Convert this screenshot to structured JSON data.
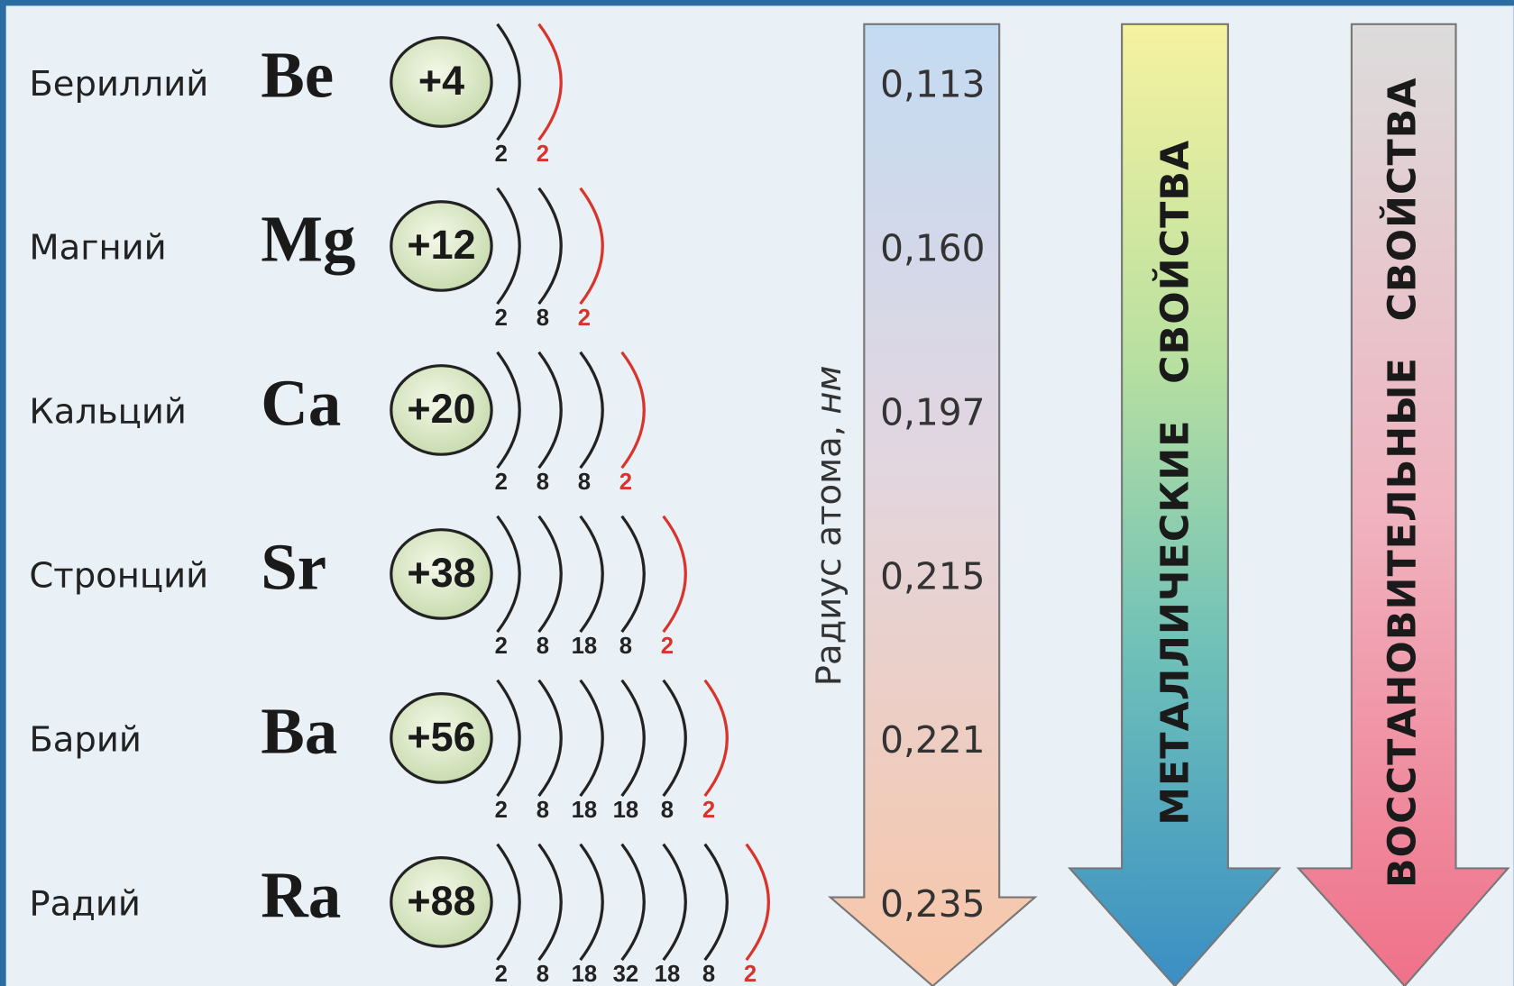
{
  "elements": [
    {
      "name": "Бериллий",
      "symbol": "Be",
      "charge": "+4",
      "shells": [
        2,
        2
      ]
    },
    {
      "name": "Магний",
      "symbol": "Mg",
      "charge": "+12",
      "shells": [
        2,
        8,
        2
      ]
    },
    {
      "name": "Кальций",
      "symbol": "Ca",
      "charge": "+20",
      "shells": [
        2,
        8,
        8,
        2
      ]
    },
    {
      "name": "Стронций",
      "symbol": "Sr",
      "charge": "+38",
      "shells": [
        2,
        8,
        18,
        8,
        2
      ]
    },
    {
      "name": "Барий",
      "symbol": "Ba",
      "charge": "+56",
      "shells": [
        2,
        8,
        18,
        18,
        8,
        2
      ]
    },
    {
      "name": "Радий",
      "symbol": "Ra",
      "charge": "+88",
      "shells": [
        2,
        8,
        18,
        32,
        18,
        8,
        2
      ]
    }
  ],
  "radius": {
    "label": "Радиус атома, ",
    "unit": "нм",
    "values": [
      "0,113",
      "0,160",
      "0,197",
      "0,215",
      "0,221",
      "0,235"
    ]
  },
  "metallic_arrow": {
    "label": "МЕТАЛЛИЧЕСКИЕ СВОЙСТВА"
  },
  "reducing_arrow": {
    "label": "ВОССТАНОВИТЕЛЬНЫЕ СВОЙСТВА"
  }
}
